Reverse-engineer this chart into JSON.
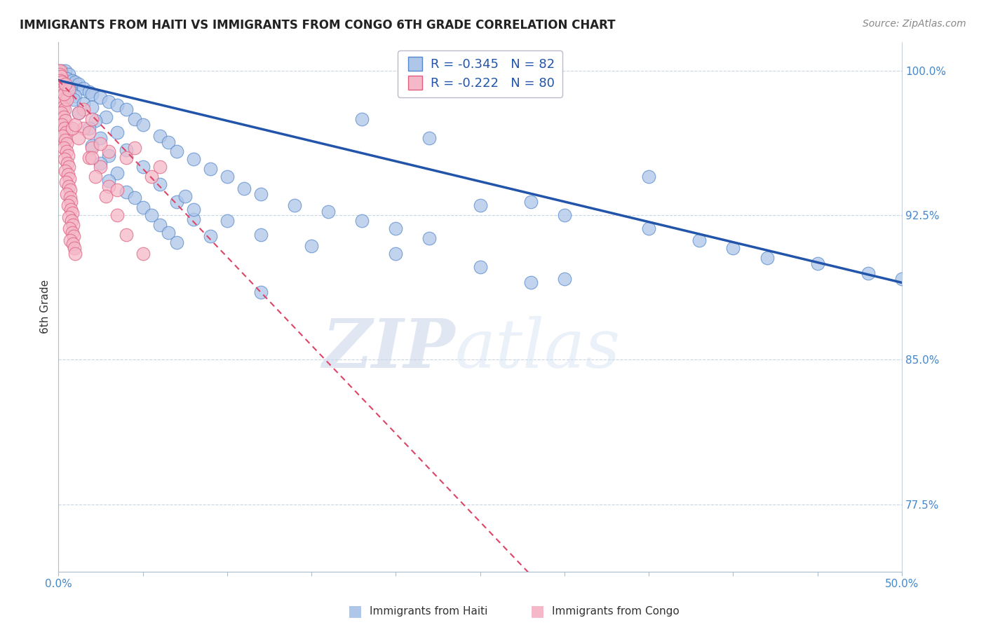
{
  "title": "IMMIGRANTS FROM HAITI VS IMMIGRANTS FROM CONGO 6TH GRADE CORRELATION CHART",
  "source": "Source: ZipAtlas.com",
  "ylabel": "6th Grade",
  "xlim": [
    0.0,
    50.0
  ],
  "ylim": [
    88.5,
    101.5
  ],
  "ytick_vals": [
    92.5,
    85.0,
    77.5,
    100.0
  ],
  "haiti_color": "#aec6e8",
  "haiti_edge_color": "#5588cc",
  "congo_color": "#f4b8c8",
  "congo_edge_color": "#e06080",
  "haiti_line_color": "#2255aa",
  "congo_line_color": "#dd4466",
  "watermark_zip_color": "#c0d0e8",
  "watermark_atlas_color": "#d0ddf0",
  "legend_r1": "-0.345",
  "legend_n1": "82",
  "legend_r2": "-0.222",
  "legend_n2": "80",
  "haiti_scatter": [
    [
      0.2,
      100.0
    ],
    [
      0.4,
      100.0
    ],
    [
      0.6,
      99.8
    ],
    [
      0.5,
      99.6
    ],
    [
      0.8,
      99.5
    ],
    [
      1.0,
      99.4
    ],
    [
      1.2,
      99.3
    ],
    [
      0.3,
      99.2
    ],
    [
      1.5,
      99.1
    ],
    [
      0.7,
      99.0
    ],
    [
      1.8,
      98.9
    ],
    [
      2.0,
      98.8
    ],
    [
      1.0,
      98.7
    ],
    [
      2.5,
      98.6
    ],
    [
      0.9,
      98.5
    ],
    [
      3.0,
      98.4
    ],
    [
      1.5,
      98.3
    ],
    [
      3.5,
      98.2
    ],
    [
      2.0,
      98.1
    ],
    [
      4.0,
      98.0
    ],
    [
      1.2,
      97.8
    ],
    [
      2.8,
      97.6
    ],
    [
      4.5,
      97.5
    ],
    [
      2.2,
      97.4
    ],
    [
      5.0,
      97.2
    ],
    [
      1.8,
      97.0
    ],
    [
      3.5,
      96.8
    ],
    [
      6.0,
      96.6
    ],
    [
      2.5,
      96.5
    ],
    [
      6.5,
      96.3
    ],
    [
      2.0,
      96.1
    ],
    [
      4.0,
      95.9
    ],
    [
      7.0,
      95.8
    ],
    [
      3.0,
      95.6
    ],
    [
      8.0,
      95.4
    ],
    [
      2.5,
      95.2
    ],
    [
      5.0,
      95.0
    ],
    [
      9.0,
      94.9
    ],
    [
      3.5,
      94.7
    ],
    [
      10.0,
      94.5
    ],
    [
      3.0,
      94.3
    ],
    [
      6.0,
      94.1
    ],
    [
      11.0,
      93.9
    ],
    [
      4.0,
      93.7
    ],
    [
      12.0,
      93.6
    ],
    [
      4.5,
      93.4
    ],
    [
      7.0,
      93.2
    ],
    [
      14.0,
      93.0
    ],
    [
      5.0,
      92.9
    ],
    [
      16.0,
      92.7
    ],
    [
      5.5,
      92.5
    ],
    [
      8.0,
      92.3
    ],
    [
      18.0,
      92.2
    ],
    [
      6.0,
      92.0
    ],
    [
      20.0,
      91.8
    ],
    [
      6.5,
      91.6
    ],
    [
      9.0,
      91.4
    ],
    [
      22.0,
      91.3
    ],
    [
      7.0,
      91.1
    ],
    [
      25.0,
      93.0
    ],
    [
      7.5,
      93.5
    ],
    [
      28.0,
      93.2
    ],
    [
      8.0,
      92.8
    ],
    [
      30.0,
      92.5
    ],
    [
      10.0,
      92.2
    ],
    [
      35.0,
      91.8
    ],
    [
      12.0,
      91.5
    ],
    [
      38.0,
      91.2
    ],
    [
      15.0,
      90.9
    ],
    [
      40.0,
      90.8
    ],
    [
      20.0,
      90.5
    ],
    [
      42.0,
      90.3
    ],
    [
      25.0,
      89.8
    ],
    [
      45.0,
      90.0
    ],
    [
      30.0,
      89.2
    ],
    [
      48.0,
      89.5
    ],
    [
      50.0,
      89.2
    ],
    [
      18.0,
      97.5
    ],
    [
      22.0,
      96.5
    ],
    [
      35.0,
      94.5
    ],
    [
      12.0,
      88.5
    ],
    [
      28.0,
      89.0
    ]
  ],
  "congo_scatter": [
    [
      0.05,
      100.0
    ],
    [
      0.1,
      100.0
    ],
    [
      0.08,
      99.8
    ],
    [
      0.15,
      99.7
    ],
    [
      0.12,
      99.5
    ],
    [
      0.2,
      99.4
    ],
    [
      0.06,
      99.2
    ],
    [
      0.18,
      99.0
    ],
    [
      0.25,
      98.9
    ],
    [
      0.22,
      98.7
    ],
    [
      0.3,
      98.5
    ],
    [
      0.1,
      98.3
    ],
    [
      0.28,
      98.1
    ],
    [
      0.35,
      98.0
    ],
    [
      0.15,
      97.8
    ],
    [
      0.32,
      97.6
    ],
    [
      0.4,
      97.4
    ],
    [
      0.2,
      97.2
    ],
    [
      0.38,
      97.0
    ],
    [
      0.45,
      96.8
    ],
    [
      0.25,
      96.6
    ],
    [
      0.42,
      96.4
    ],
    [
      0.5,
      96.2
    ],
    [
      0.3,
      96.0
    ],
    [
      0.48,
      95.8
    ],
    [
      0.55,
      95.6
    ],
    [
      0.35,
      95.4
    ],
    [
      0.52,
      95.2
    ],
    [
      0.6,
      95.0
    ],
    [
      0.4,
      94.8
    ],
    [
      0.58,
      94.6
    ],
    [
      0.65,
      94.4
    ],
    [
      0.45,
      94.2
    ],
    [
      0.62,
      94.0
    ],
    [
      0.7,
      93.8
    ],
    [
      0.5,
      93.6
    ],
    [
      0.68,
      93.4
    ],
    [
      0.75,
      93.2
    ],
    [
      0.55,
      93.0
    ],
    [
      0.72,
      92.8
    ],
    [
      0.8,
      92.6
    ],
    [
      0.6,
      92.4
    ],
    [
      0.78,
      92.2
    ],
    [
      0.85,
      92.0
    ],
    [
      0.65,
      91.8
    ],
    [
      0.82,
      91.6
    ],
    [
      0.9,
      91.4
    ],
    [
      0.7,
      91.2
    ],
    [
      0.88,
      91.0
    ],
    [
      0.95,
      90.8
    ],
    [
      1.0,
      90.5
    ],
    [
      1.5,
      97.0
    ],
    [
      2.0,
      96.0
    ],
    [
      2.5,
      95.0
    ],
    [
      3.0,
      94.0
    ],
    [
      1.2,
      96.5
    ],
    [
      1.8,
      95.5
    ],
    [
      2.2,
      94.5
    ],
    [
      2.8,
      93.5
    ],
    [
      3.5,
      92.5
    ],
    [
      0.5,
      98.5
    ],
    [
      4.0,
      91.5
    ],
    [
      1.5,
      98.0
    ],
    [
      5.0,
      90.5
    ],
    [
      2.0,
      97.5
    ],
    [
      6.0,
      95.0
    ],
    [
      0.8,
      97.0
    ],
    [
      0.3,
      98.8
    ],
    [
      1.0,
      97.2
    ],
    [
      4.5,
      96.0
    ],
    [
      3.0,
      95.8
    ],
    [
      2.5,
      96.2
    ],
    [
      1.8,
      96.8
    ],
    [
      5.5,
      94.5
    ],
    [
      0.6,
      99.0
    ],
    [
      4.0,
      95.5
    ],
    [
      2.0,
      95.5
    ],
    [
      3.5,
      93.8
    ],
    [
      1.2,
      97.8
    ],
    [
      0.4,
      99.3
    ]
  ]
}
